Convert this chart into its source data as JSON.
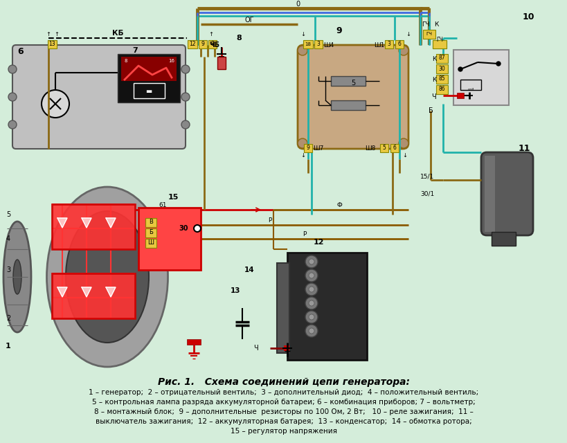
{
  "title": "Рис. 1.   Схема соединений цепи генератора:",
  "caption_line1": "1 – генератор;  2 – отрицательный вентиль;  3 – дополнительный диод;  4 – положительный вентиль;",
  "caption_line2": "5 – контрольная лампа разряда аккумуляторной батареи; 6 – комбинация приборов; 7 – вольтметр;",
  "caption_line3": "8 – монтажный блок;  9 – дополнительные  резисторы по 100 Ом, 2 Вт;   10 – реле зажигания;  11 –",
  "caption_line4": "выключатель зажигания;  12 – аккумуляторная батарея;  13 – конденсатор;  14 – обмотка ротора;",
  "caption_line5": "15 – регулятор напряжения",
  "bg_color": "#d4edda",
  "fig_width": 8.2,
  "fig_height": 6.4,
  "dpi": 100,
  "wire_brown": "#8B6914",
  "wire_blue": "#008B8B",
  "wire_teal": "#20B2AA",
  "wire_red": "#cc0000",
  "wire_dark": "#555555",
  "yellow_tag": "#e8c840",
  "gen_body": "#a8a8a8",
  "box6_color": "#b8b8b8",
  "box9_color": "#c8a882",
  "relay_color": "#c8c8c8"
}
